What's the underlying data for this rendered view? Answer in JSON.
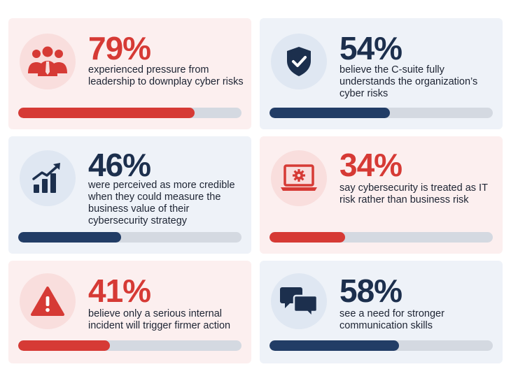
{
  "stats": [
    {
      "percent": "79%",
      "value": 0.79,
      "description": "experienced pressure from leadership to downplay cyber risks",
      "theme": "red",
      "icon": "people-icon"
    },
    {
      "percent": "54%",
      "value": 0.54,
      "description": "believe the C-suite fully understands the organization’s cyber risks",
      "theme": "blue",
      "icon": "shield-check-icon"
    },
    {
      "percent": "46%",
      "value": 0.46,
      "description": "were perceived as more credible when they could measure the business value of their cybersecurity strategy",
      "theme": "blue",
      "icon": "growth-chart-icon"
    },
    {
      "percent": "34%",
      "value": 0.34,
      "description": "say cybersecurity is treated as IT risk rather than business risk",
      "theme": "red",
      "icon": "laptop-gear-icon"
    },
    {
      "percent": "41%",
      "value": 0.41,
      "description": "believe only a serious internal incident will trigger firmer action",
      "theme": "red",
      "icon": "warning-icon"
    },
    {
      "percent": "58%",
      "value": 0.58,
      "description": "see a need for stronger communication skills",
      "theme": "blue",
      "icon": "chat-bubbles-icon"
    }
  ],
  "colors": {
    "red": "#d63a35",
    "navy": "#1c2f4d",
    "bar_track": "#d4d9e1"
  }
}
